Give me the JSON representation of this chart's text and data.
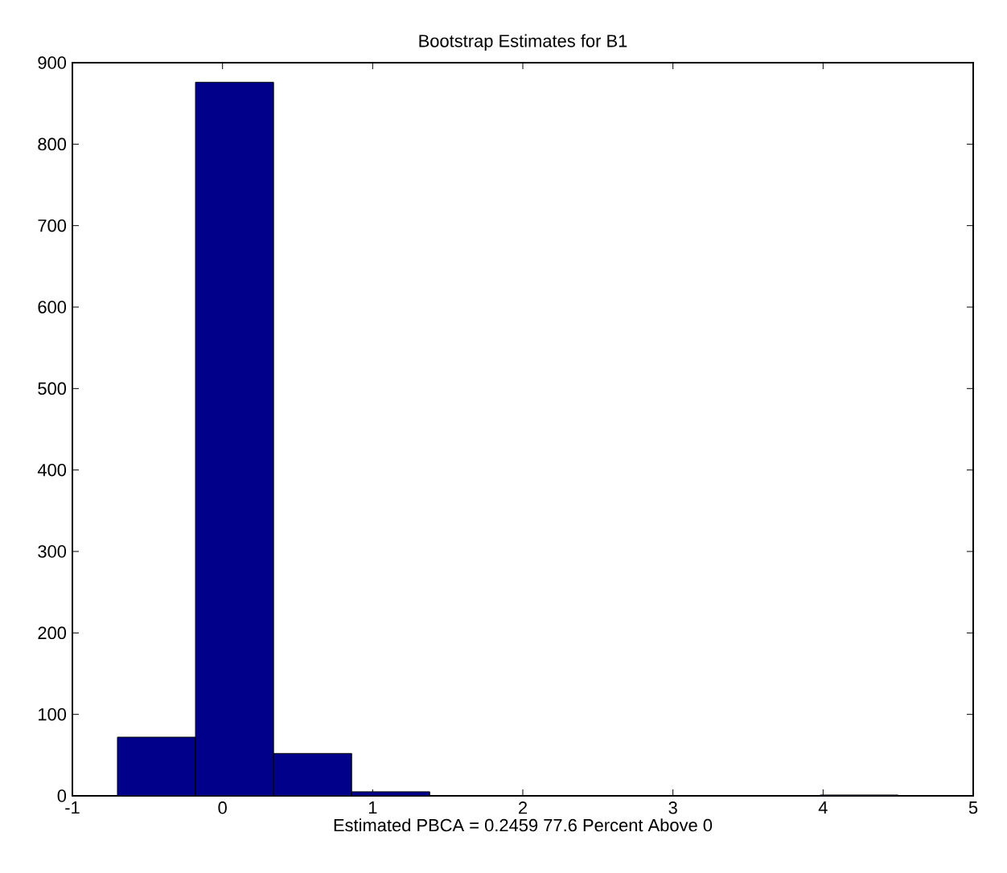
{
  "chart_data": {
    "type": "histogram",
    "title": "Bootstrap Estimates for B1",
    "xlabel": "Estimated PBCA = 0.2459  77.6 Percent Above 0",
    "bins": [
      -0.7,
      -0.18,
      0.34,
      0.86,
      1.38,
      1.9,
      2.42,
      2.94,
      3.46,
      3.98,
      4.5
    ],
    "values": [
      72,
      876,
      52,
      5,
      0,
      0,
      0,
      0,
      0,
      1
    ],
    "color": "#00008b",
    "xlim": [
      -1,
      5
    ],
    "xticks": [
      -1,
      0,
      1,
      2,
      3,
      4,
      5
    ],
    "ylim": [
      0,
      900
    ],
    "yticks": [
      0,
      100,
      200,
      300,
      400,
      500,
      600,
      700,
      800,
      900
    ]
  }
}
